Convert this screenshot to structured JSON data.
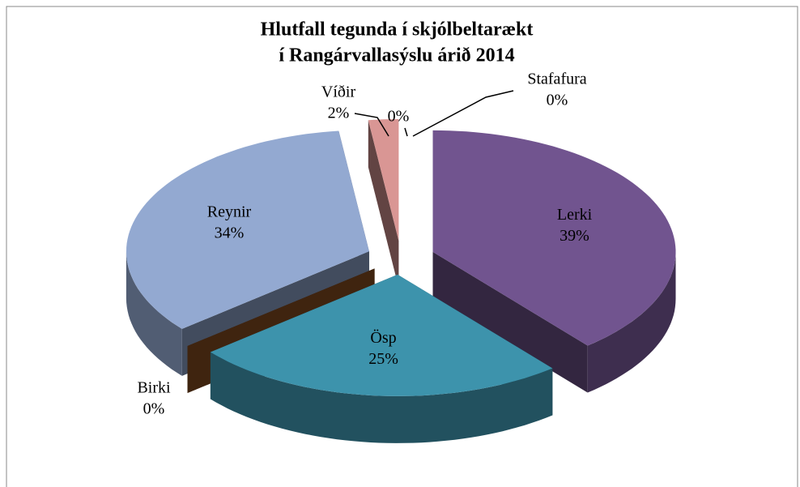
{
  "chart_data": {
    "type": "pie3d",
    "title": [
      "Hlutfall tegunda í skjólbeltarækt",
      "í Rangárvallasýslu árið 2014"
    ],
    "categories": [
      "Lerki",
      "Ösp",
      "Birki",
      "Reynir",
      "Víðir",
      null,
      "Stafafura"
    ],
    "values": [
      39,
      25,
      0,
      34,
      2,
      0,
      0
    ],
    "value_labels": [
      "39%",
      "25%",
      "0%",
      "34%",
      "2%",
      "0%",
      "0%"
    ],
    "colors": [
      "#71548f",
      "#3d93ac",
      "#8b4f22",
      "#93a9d1",
      "#d99694",
      "#4bacc6",
      "#9bbb59"
    ]
  }
}
